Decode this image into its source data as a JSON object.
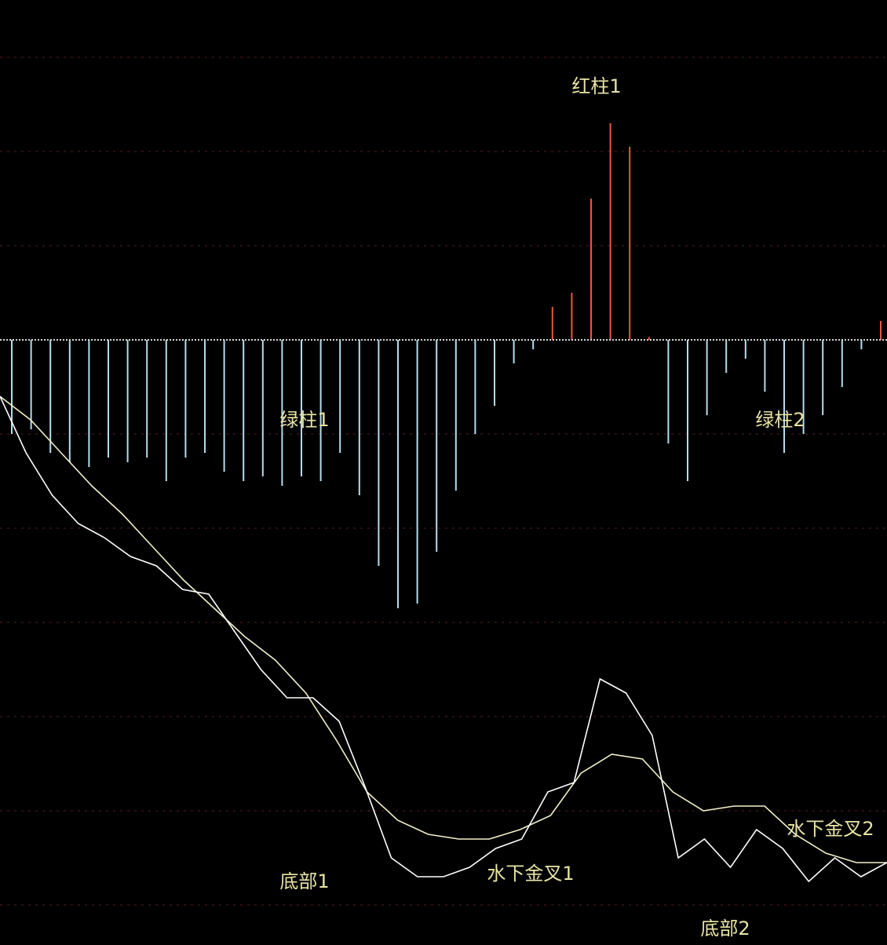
{
  "colors": {
    "background": "#000000",
    "grid": "#5a1e1e",
    "zero_line": "#d8d8d8",
    "red_bar": "#e8573e",
    "green_bar": "#b4dcec",
    "dif_line": "#ffffff",
    "dea_line": "#f2f0c8",
    "annotation": "#e8e4a4"
  },
  "chart_data": {
    "type": "bar+line",
    "title": "",
    "xlabel": "",
    "ylabel": "",
    "grid": true,
    "y_range": [
      -6.5,
      3.6
    ],
    "histogram": [
      -1.0,
      -0.95,
      -1.2,
      -1.3,
      -1.35,
      -1.25,
      -1.3,
      -1.25,
      -1.5,
      -1.25,
      -1.2,
      -1.4,
      -1.5,
      -1.45,
      -1.55,
      -1.45,
      -1.5,
      -1.2,
      -1.65,
      -2.4,
      -2.85,
      -2.8,
      -2.25,
      -1.6,
      -1.0,
      -0.7,
      -0.25,
      -0.1,
      0.35,
      0.5,
      1.5,
      2.3,
      2.05,
      0.03,
      -1.1,
      -1.5,
      -0.8,
      -0.35,
      -0.2,
      -0.55,
      -1.2,
      -1.0,
      -0.8,
      -0.5,
      -0.1,
      0.2
    ],
    "dif": [
      -0.6,
      -1.2,
      -1.65,
      -1.95,
      -2.1,
      -2.3,
      -2.4,
      -2.65,
      -2.7,
      -3.1,
      -3.5,
      -3.8,
      -3.8,
      -4.05,
      -4.75,
      -5.5,
      -5.7,
      -5.7,
      -5.6,
      -5.4,
      -5.3,
      -4.8,
      -4.7,
      -3.6,
      -3.75,
      -4.2,
      -5.5,
      -5.3,
      -5.6,
      -5.2,
      -5.4,
      -5.75,
      -5.5,
      -5.7,
      -5.55
    ],
    "dea": [
      -0.6,
      -0.85,
      -1.2,
      -1.55,
      -1.85,
      -2.2,
      -2.55,
      -2.85,
      -3.15,
      -3.4,
      -3.75,
      -4.25,
      -4.8,
      -5.1,
      -5.25,
      -5.3,
      -5.3,
      -5.2,
      -5.05,
      -4.6,
      -4.4,
      -4.45,
      -4.8,
      -5.0,
      -4.95,
      -4.95,
      -5.25,
      -5.45,
      -5.55,
      -5.55
    ]
  },
  "annotations": {
    "red_bar_1": "红柱1",
    "green_bar_1": "绿柱1",
    "green_bar_2": "绿柱2",
    "bottom_1": "底部1",
    "bottom_2": "底部2",
    "cross_1": "水下金叉1",
    "cross_2": "水下金叉2"
  }
}
